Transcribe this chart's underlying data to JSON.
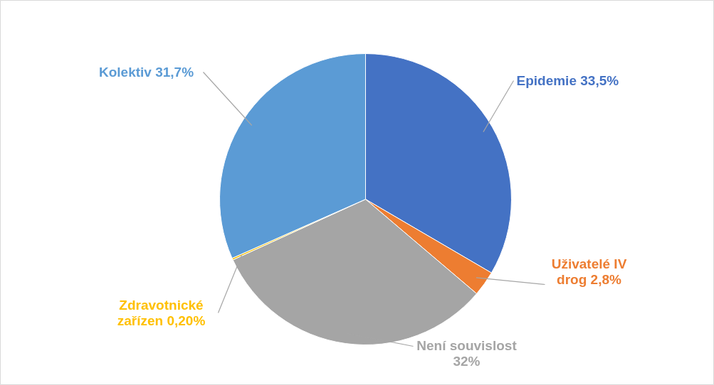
{
  "chart_data": {
    "type": "pie",
    "categories": [
      "Epidemie",
      "Uživatelé IV drog",
      "Není souvislost",
      "Zdravotnické zařízen",
      "Kolektiv"
    ],
    "values": [
      33.5,
      2.8,
      32,
      0.2,
      31.7
    ],
    "value_labels": [
      "33,5%",
      "2,8%",
      "32%",
      "0,20%",
      "31,7%"
    ],
    "colors": [
      "#4472c4",
      "#ed7d31",
      "#a5a5a5",
      "#ffc000",
      "#5b9bd5"
    ],
    "legend": false
  }
}
